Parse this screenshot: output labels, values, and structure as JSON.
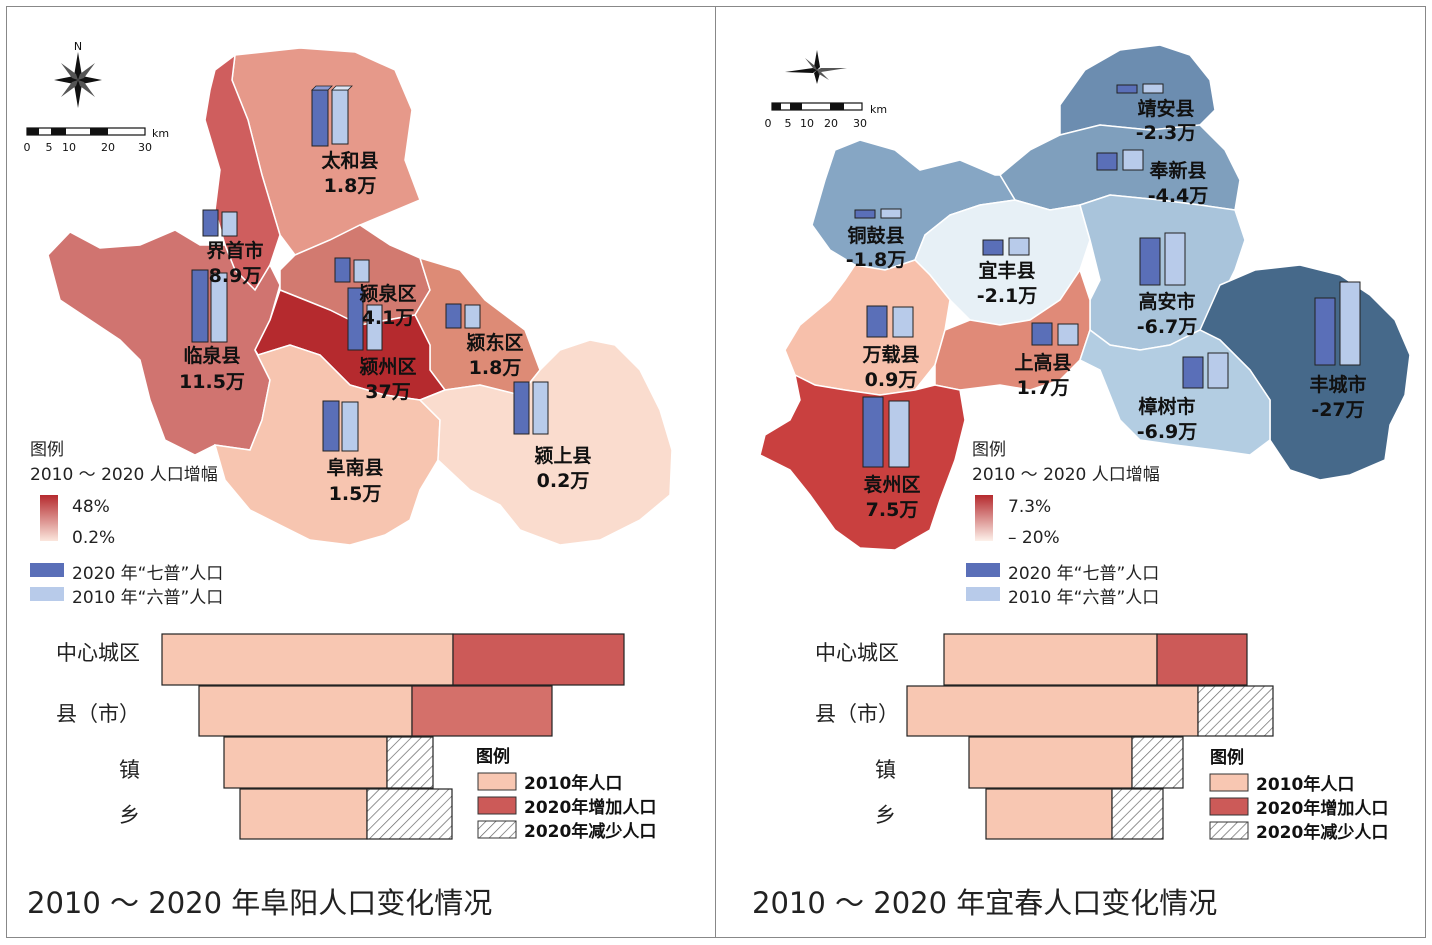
{
  "left_panel": {
    "caption": "2010 ～ 2020 年阜阳人口变化情况",
    "scale": {
      "ticks": [
        "0",
        "5",
        "10",
        "20",
        "30"
      ],
      "unit": "km"
    },
    "compass_label": "N",
    "regions": [
      {
        "name": "太和县",
        "value": "1.8万",
        "color": "#e6998a"
      },
      {
        "name": "界首市",
        "value": "8.9万",
        "color": "#cf5e5e"
      },
      {
        "name": "临泉县",
        "value": "11.5万",
        "color": "#d07470"
      },
      {
        "name": "颍泉区",
        "value": "4.1万",
        "color": "#d27a70"
      },
      {
        "name": "颍东区",
        "value": "1.8万",
        "color": "#dd8b76"
      },
      {
        "name": "颍州区",
        "value": "37万",
        "color": "#b52a2e"
      },
      {
        "name": "阜南县",
        "value": "1.5万",
        "color": "#f7c5b0"
      },
      {
        "name": "颍上县",
        "value": "0.2万",
        "color": "#fadcce"
      }
    ],
    "map_legend": {
      "title": "图例",
      "subtitle": "2010 ～ 2020 人口增幅",
      "max": "48%",
      "min": "0.2%",
      "bar2020": "2020 年“七普”人口",
      "bar2010": "2010 年“六普”人口"
    },
    "pyramid": {
      "categories": [
        "中心城区",
        "县（市）",
        "镇",
        "乡"
      ],
      "legend_title": "图例",
      "legend_items": [
        "2010年人口",
        "2020年增加人口",
        "2020年减少人口"
      ]
    }
  },
  "right_panel": {
    "caption": "2010 ～ 2020 年宜春人口变化情况",
    "scale": {
      "ticks": [
        "0",
        "5",
        "10",
        "20",
        "30"
      ],
      "unit": "km"
    },
    "regions": [
      {
        "name": "靖安县",
        "value": "-2.3万",
        "color": "#6c8db0"
      },
      {
        "name": "奉新县",
        "value": "-4.4万",
        "color": "#7f9fbd"
      },
      {
        "name": "铜鼓县",
        "value": "-1.8万",
        "color": "#86a6c4"
      },
      {
        "name": "宜丰县",
        "value": "-2.1万",
        "color": "#e7f0f6"
      },
      {
        "name": "高安市",
        "value": "-6.7万",
        "color": "#a9c4db"
      },
      {
        "name": "丰城市",
        "value": "-27万",
        "color": "#46698a"
      },
      {
        "name": "万载县",
        "value": "0.9万",
        "color": "#f7c0ab"
      },
      {
        "name": "上高县",
        "value": "1.7万",
        "color": "#e08a78"
      },
      {
        "name": "樟树市",
        "value": "-6.9万",
        "color": "#b3cde2"
      },
      {
        "name": "袁州区",
        "value": "7.5万",
        "color": "#c9403f"
      }
    ],
    "map_legend": {
      "title": "图例",
      "subtitle": "2010 ～ 2020 人口增幅",
      "max": "7.3%",
      "min": "– 20%",
      "bar2020": "2020 年“七普”人口",
      "bar2010": "2010 年“六普”人口"
    },
    "pyramid": {
      "categories": [
        "中心城区",
        "县（市）",
        "镇",
        "乡"
      ],
      "legend_title": "图例",
      "legend_items": [
        "2010年人口",
        "2020年增加人口",
        "2020年减少人口"
      ]
    }
  },
  "colors": {
    "pop2010": "#f8c7b2",
    "increase": "#cc5a58",
    "decrease_hatch": "#666666",
    "bar2020": "#5a6fb8",
    "bar2010": "#b8cbea"
  }
}
